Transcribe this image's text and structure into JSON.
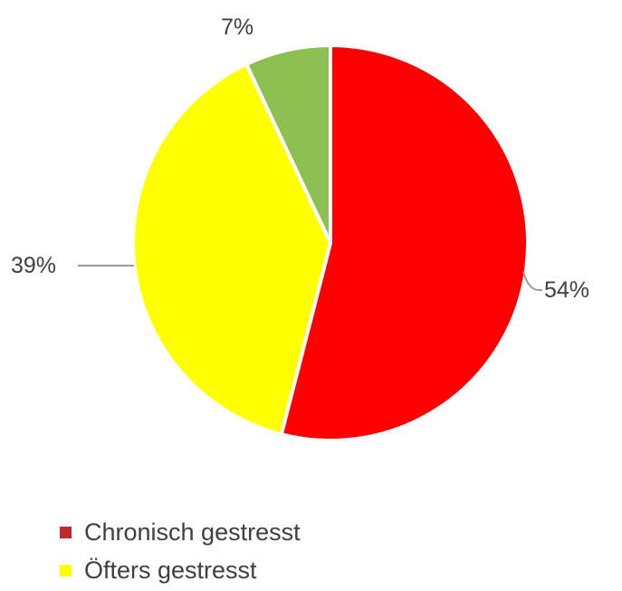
{
  "chart_data": {
    "type": "pie",
    "title": "",
    "start_angle_deg": 0,
    "direction": "clockwise",
    "slices": [
      {
        "label": "Chronisch gestresst",
        "value": 54,
        "display": "54%",
        "color": "#ff0000"
      },
      {
        "label": "Öfters gestresst",
        "value": 39,
        "display": "39%",
        "color": "#ffff00"
      },
      {
        "label": "",
        "value": 7,
        "display": "7%",
        "color": "#8cc152"
      }
    ],
    "legend": {
      "position": "bottom-left",
      "entries": [
        {
          "label": "Chronisch gestresst",
          "color": "#c0272d"
        },
        {
          "label": "Öfters gestresst",
          "color": "#ffff00"
        }
      ]
    }
  }
}
